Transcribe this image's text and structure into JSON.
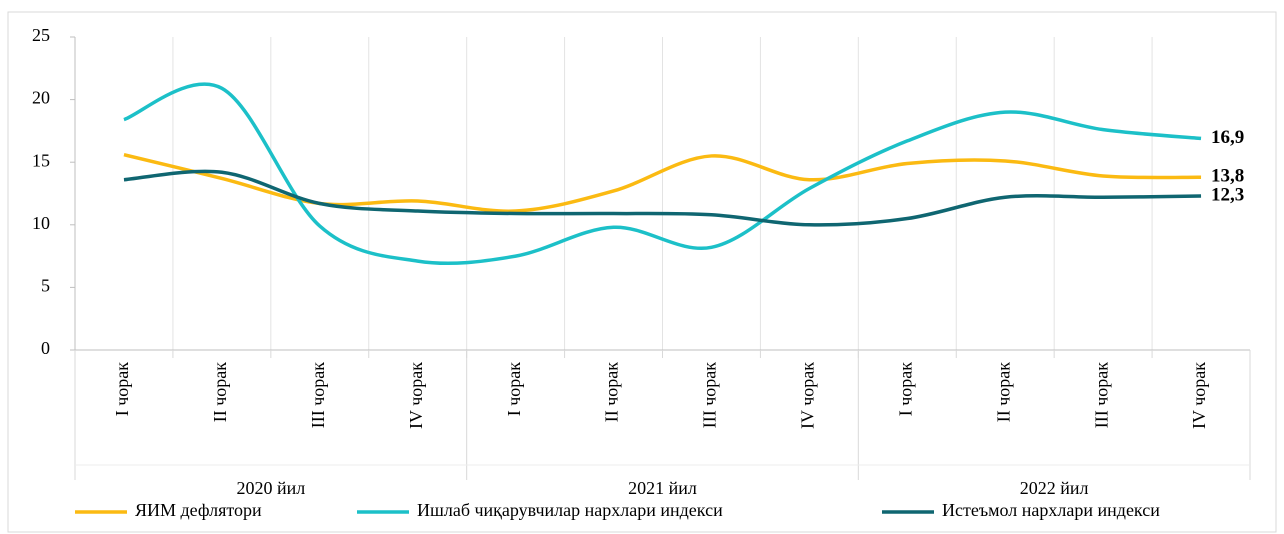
{
  "chart_data": {
    "type": "line",
    "categories": [
      "I чорак",
      "II чорак",
      "III чорак",
      "IV чорак",
      "I чорак",
      "II чорак",
      "III чорак",
      "IV чорак",
      "I чорак",
      "II чорак",
      "III чорак",
      "IV чорак"
    ],
    "groups": [
      "2020 йил",
      "2021 йил",
      "2022 йил"
    ],
    "series": [
      {
        "name": "ЯИМ дефлятори",
        "color": "#FBBA12",
        "values": [
          15.6,
          13.7,
          11.7,
          11.9,
          11.1,
          12.7,
          15.5,
          13.6,
          14.9,
          15.1,
          13.9,
          13.8
        ],
        "value_labels": [
          null,
          null,
          null,
          null,
          null,
          null,
          null,
          null,
          null,
          null,
          null,
          "13,8"
        ]
      },
      {
        "name": "Ишлаб чиқарувчилар нархлари индекси",
        "color": "#1CC0C8",
        "values": [
          18.4,
          20.9,
          9.9,
          7.1,
          7.5,
          9.8,
          8.2,
          12.9,
          16.7,
          19.0,
          17.6,
          16.9
        ],
        "value_labels": [
          null,
          null,
          null,
          null,
          null,
          null,
          null,
          null,
          null,
          null,
          null,
          "16,9"
        ]
      },
      {
        "name": "Истеъмол нархлари индекси",
        "color": "#0F6671",
        "values": [
          13.6,
          14.2,
          11.7,
          11.1,
          10.9,
          10.9,
          10.8,
          10.0,
          10.5,
          12.2,
          12.2,
          12.3
        ],
        "value_labels": [
          null,
          null,
          null,
          null,
          null,
          null,
          null,
          null,
          null,
          null,
          null,
          "12,3"
        ]
      }
    ],
    "ylim": [
      0,
      25
    ],
    "yticks": [
      0,
      5,
      10,
      15,
      20,
      25
    ]
  }
}
